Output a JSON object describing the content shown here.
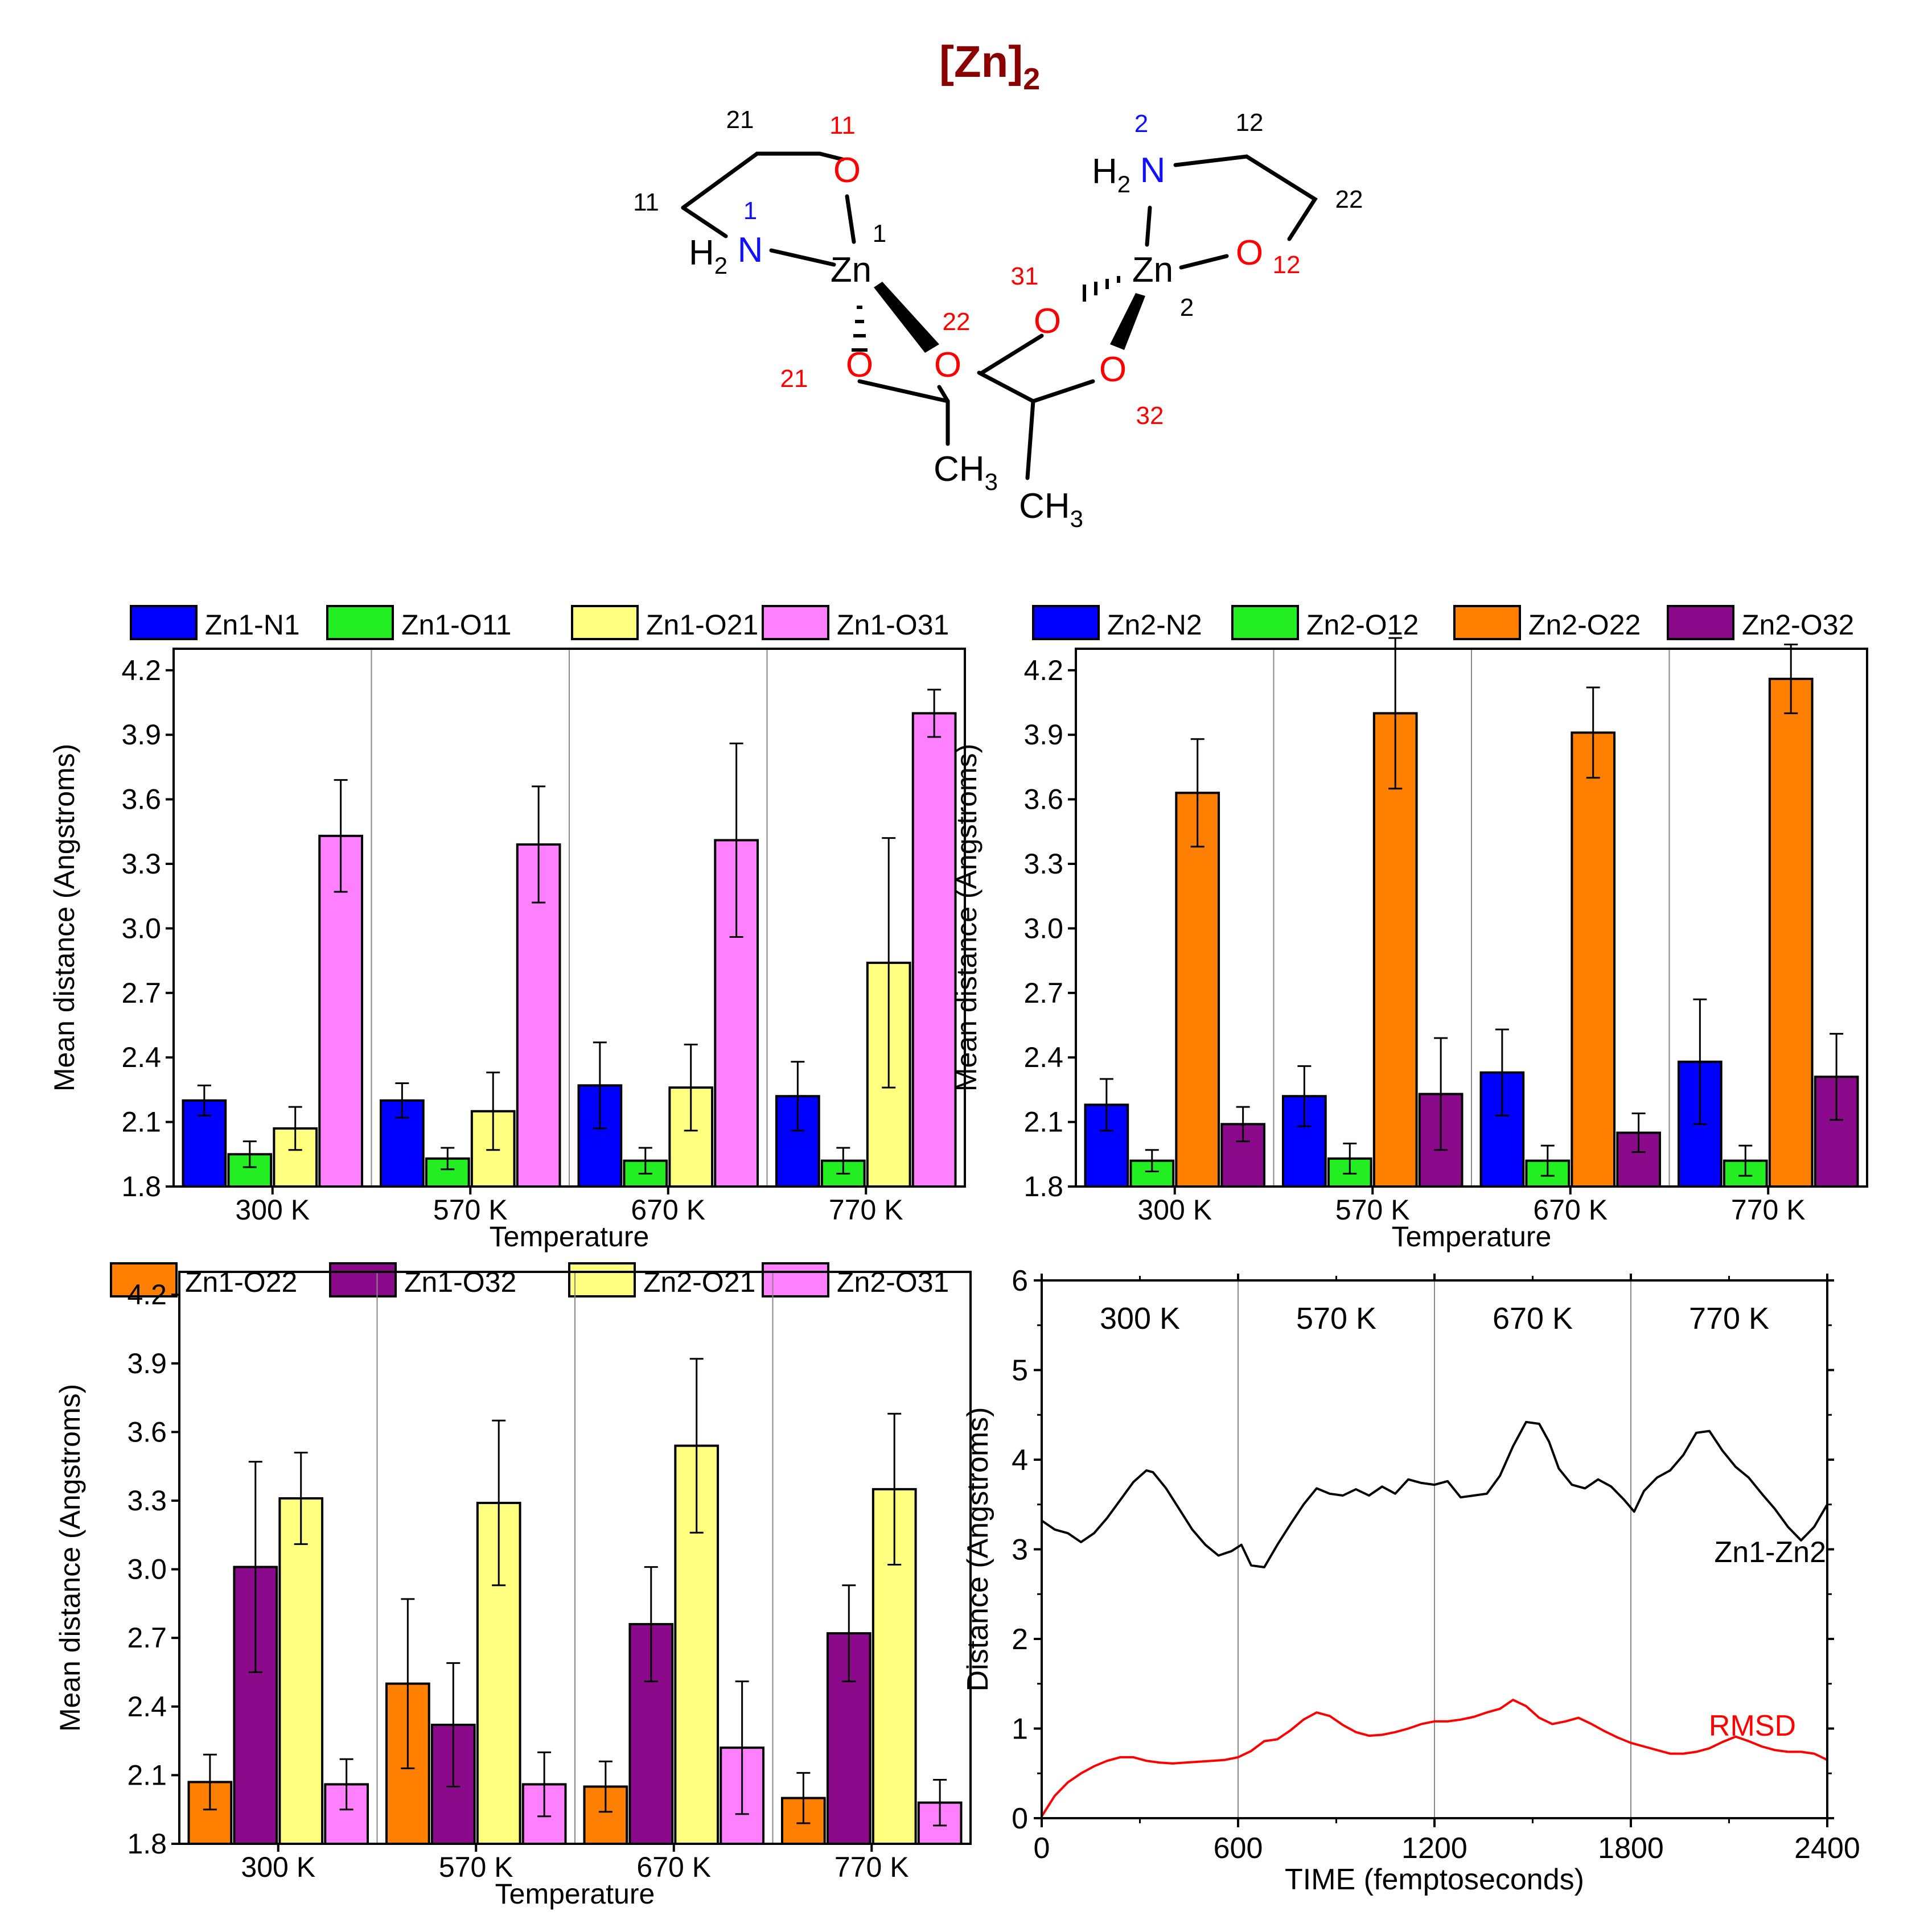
{
  "molecule": {
    "title": "[Zn]",
    "title_subscript": "2",
    "atom_labels_black": [
      "21",
      "11",
      "1",
      "12",
      "22",
      "2",
      "Zn",
      "Zn"
    ],
    "atom_labels_red": [
      "11",
      "21",
      "22",
      "31",
      "12",
      "32",
      "O",
      "O",
      "O",
      "O",
      "O",
      "O"
    ],
    "atom_labels_blue": [
      "1",
      "2",
      "N",
      "N"
    ],
    "groups": [
      "H",
      "2",
      "CH",
      "3"
    ],
    "colors": {
      "title": "#8b0000",
      "oxygen": "#ff0000",
      "nitrogen": "#1010ff",
      "bonds": "#000000"
    }
  },
  "chart_data": [
    {
      "type": "bar",
      "panel": "top-left",
      "categories": [
        "300 K",
        "570 K",
        "670 K",
        "770 K"
      ],
      "xlabel": "Temperature",
      "ylabel": "Mean distance (Angstroms)",
      "ylim": [
        1.8,
        4.3
      ],
      "yticks": [
        "1.8",
        "2.1",
        "2.4",
        "2.7",
        "3.0",
        "3.3",
        "3.6",
        "3.9",
        "4.2"
      ],
      "legend_position": "top",
      "series": [
        {
          "name": "Zn1-N1",
          "color": "#0000ff",
          "values": [
            2.2,
            2.2,
            2.27,
            2.22
          ],
          "errors": [
            0.07,
            0.08,
            0.2,
            0.16
          ]
        },
        {
          "name": "Zn1-O11",
          "color": "#22ee22",
          "values": [
            1.95,
            1.93,
            1.92,
            1.92
          ],
          "errors": [
            0.06,
            0.05,
            0.06,
            0.06
          ]
        },
        {
          "name": "Zn1-O21",
          "color": "#ffff80",
          "values": [
            2.07,
            2.15,
            2.26,
            2.84
          ],
          "errors": [
            0.1,
            0.18,
            0.2,
            0.58
          ]
        },
        {
          "name": "Zn1-O31",
          "color": "#ff80ff",
          "values": [
            3.43,
            3.39,
            3.41,
            4.0
          ],
          "errors": [
            0.26,
            0.27,
            0.45,
            0.11
          ]
        }
      ]
    },
    {
      "type": "bar",
      "panel": "top-right",
      "categories": [
        "300 K",
        "570 K",
        "670 K",
        "770 K"
      ],
      "xlabel": "Temperature",
      "ylabel": "Mean distance (Angstroms)",
      "ylim": [
        1.8,
        4.3
      ],
      "yticks": [
        "1.8",
        "2.1",
        "2.4",
        "2.7",
        "3.0",
        "3.3",
        "3.6",
        "3.9",
        "4.2"
      ],
      "legend_position": "top",
      "series": [
        {
          "name": "Zn2-N2",
          "color": "#0000ff",
          "values": [
            2.18,
            2.22,
            2.33,
            2.38
          ],
          "errors": [
            0.12,
            0.14,
            0.2,
            0.29
          ]
        },
        {
          "name": "Zn2-O12",
          "color": "#22ee22",
          "values": [
            1.92,
            1.93,
            1.92,
            1.92
          ],
          "errors": [
            0.05,
            0.07,
            0.07,
            0.07
          ]
        },
        {
          "name": "Zn2-O22",
          "color": "#ff8000",
          "values": [
            3.63,
            4.0,
            3.91,
            4.16
          ],
          "errors": [
            0.25,
            0.35,
            0.21,
            0.16
          ]
        },
        {
          "name": "Zn2-O32",
          "color": "#8b0a8b",
          "values": [
            2.09,
            2.23,
            2.05,
            2.31
          ],
          "errors": [
            0.08,
            0.26,
            0.09,
            0.2
          ]
        }
      ]
    },
    {
      "type": "bar",
      "panel": "bottom-left",
      "categories": [
        "300 K",
        "570 K",
        "670 K",
        "770 K"
      ],
      "xlabel": "Temperature",
      "ylabel": "Mean distance (Angstroms)",
      "ylim": [
        1.8,
        4.3
      ],
      "yticks": [
        "1.8",
        "2.1",
        "2.4",
        "2.7",
        "3.0",
        "3.3",
        "3.6",
        "3.9",
        "4.2"
      ],
      "legend_position": "top",
      "series": [
        {
          "name": "Zn1-O22",
          "color": "#ff8000",
          "values": [
            2.07,
            2.5,
            2.05,
            2.0
          ],
          "errors": [
            0.12,
            0.37,
            0.11,
            0.11
          ]
        },
        {
          "name": "Zn1-O32",
          "color": "#8b0a8b",
          "values": [
            3.01,
            2.32,
            2.76,
            2.72
          ],
          "errors": [
            0.46,
            0.27,
            0.25,
            0.21
          ]
        },
        {
          "name": "Zn2-O21",
          "color": "#ffff80",
          "values": [
            3.31,
            3.29,
            3.54,
            3.35
          ],
          "errors": [
            0.2,
            0.36,
            0.38,
            0.33
          ]
        },
        {
          "name": "Zn2-O31",
          "color": "#ff80ff",
          "values": [
            2.06,
            2.06,
            2.22,
            1.98
          ],
          "errors": [
            0.11,
            0.14,
            0.29,
            0.1
          ]
        }
      ]
    },
    {
      "type": "line",
      "panel": "bottom-right",
      "xlabel": "TIME (femptoseconds)",
      "ylabel": "Distance (Angstroms)",
      "xlim": [
        0,
        2400
      ],
      "ylim": [
        0,
        6
      ],
      "xticks": [
        "0",
        "600",
        "1200",
        "1800",
        "2400"
      ],
      "yticks": [
        "0",
        "1",
        "2",
        "3",
        "4",
        "5",
        "6"
      ],
      "regions": [
        "300 K",
        "570 K",
        "670 K",
        "770 K"
      ],
      "series": [
        {
          "name": "Zn1-Zn2",
          "color": "#000000",
          "x": [
            0,
            40,
            80,
            120,
            160,
            200,
            240,
            280,
            320,
            340,
            380,
            420,
            460,
            500,
            540,
            580,
            610,
            640,
            680,
            720,
            760,
            800,
            840,
            880,
            920,
            960,
            1000,
            1040,
            1080,
            1120,
            1160,
            1200,
            1240,
            1280,
            1320,
            1360,
            1400,
            1440,
            1480,
            1520,
            1550,
            1580,
            1620,
            1660,
            1700,
            1740,
            1780,
            1810,
            1840,
            1880,
            1920,
            1960,
            2000,
            2040,
            2080,
            2120,
            2160,
            2200,
            2240,
            2280,
            2320,
            2360,
            2400
          ],
          "y": [
            3.32,
            3.22,
            3.18,
            3.08,
            3.18,
            3.35,
            3.55,
            3.75,
            3.88,
            3.86,
            3.68,
            3.45,
            3.22,
            3.05,
            2.93,
            2.98,
            3.05,
            2.82,
            2.8,
            3.05,
            3.28,
            3.5,
            3.68,
            3.62,
            3.6,
            3.67,
            3.6,
            3.7,
            3.62,
            3.78,
            3.74,
            3.72,
            3.76,
            3.58,
            3.6,
            3.62,
            3.82,
            4.15,
            4.42,
            4.4,
            4.2,
            3.9,
            3.72,
            3.68,
            3.78,
            3.7,
            3.55,
            3.42,
            3.65,
            3.8,
            3.88,
            4.05,
            4.3,
            4.32,
            4.1,
            3.92,
            3.8,
            3.62,
            3.45,
            3.25,
            3.1,
            3.25,
            3.5
          ]
        },
        {
          "name": "RMSD",
          "color": "#ff0000",
          "x": [
            0,
            40,
            80,
            120,
            160,
            200,
            240,
            280,
            320,
            360,
            400,
            440,
            480,
            520,
            560,
            600,
            640,
            680,
            720,
            760,
            800,
            840,
            880,
            920,
            960,
            1000,
            1040,
            1080,
            1120,
            1160,
            1200,
            1240,
            1280,
            1320,
            1360,
            1400,
            1440,
            1480,
            1520,
            1560,
            1600,
            1640,
            1680,
            1720,
            1760,
            1800,
            1840,
            1880,
            1920,
            1960,
            2000,
            2040,
            2080,
            2120,
            2160,
            2200,
            2240,
            2280,
            2320,
            2360,
            2400
          ],
          "y": [
            0.02,
            0.25,
            0.4,
            0.5,
            0.58,
            0.64,
            0.68,
            0.68,
            0.64,
            0.62,
            0.61,
            0.62,
            0.63,
            0.64,
            0.65,
            0.68,
            0.75,
            0.86,
            0.88,
            0.98,
            1.1,
            1.18,
            1.14,
            1.04,
            0.96,
            0.92,
            0.93,
            0.96,
            1.0,
            1.05,
            1.08,
            1.08,
            1.1,
            1.13,
            1.18,
            1.22,
            1.32,
            1.25,
            1.12,
            1.05,
            1.08,
            1.12,
            1.05,
            0.97,
            0.9,
            0.84,
            0.8,
            0.76,
            0.72,
            0.72,
            0.74,
            0.78,
            0.85,
            0.91,
            0.86,
            0.8,
            0.76,
            0.74,
            0.74,
            0.72,
            0.65
          ]
        }
      ]
    }
  ]
}
